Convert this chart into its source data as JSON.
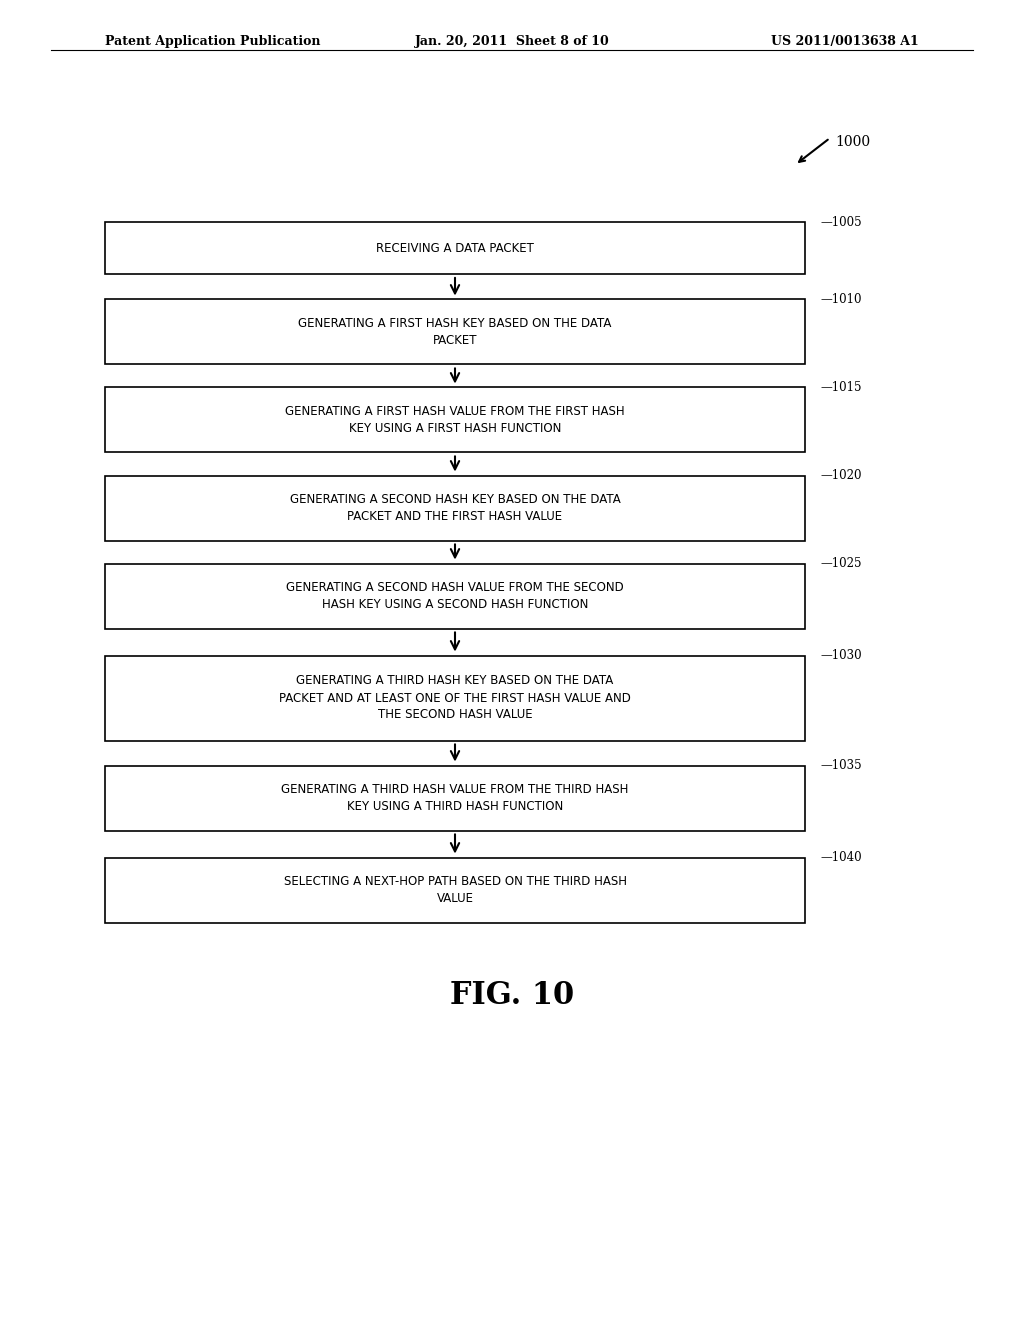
{
  "header_left": "Patent Application Publication",
  "header_center": "Jan. 20, 2011  Sheet 8 of 10",
  "header_right": "US 2011/0013638 A1",
  "figure_label": "1000",
  "fig_caption": "FIG. 10",
  "boxes": [
    {
      "id": "1005",
      "label": "RECEIVING A DATA PACKET",
      "lines": [
        "RECEIVING A DATA PACKET"
      ]
    },
    {
      "id": "1010",
      "label": "GENERATING A FIRST HASH KEY BASED ON THE DATA\nPACKET",
      "lines": [
        "GENERATING A FIRST HASH KEY BASED ON THE DATA",
        "PACKET"
      ]
    },
    {
      "id": "1015",
      "label": "GENERATING A FIRST HASH VALUE FROM THE FIRST HASH\nKEY USING A FIRST HASH FUNCTION",
      "lines": [
        "GENERATING A FIRST HASH VALUE FROM THE FIRST HASH",
        "KEY USING A FIRST HASH FUNCTION"
      ]
    },
    {
      "id": "1020",
      "label": "GENERATING A SECOND HASH KEY BASED ON THE DATA\nPACKET AND THE FIRST HASH VALUE",
      "lines": [
        "GENERATING A SECOND HASH KEY BASED ON THE DATA",
        "PACKET AND THE FIRST HASH VALUE"
      ]
    },
    {
      "id": "1025",
      "label": "GENERATING A SECOND HASH VALUE FROM THE SECOND\nHASH KEY USING A SECOND HASH FUNCTION",
      "lines": [
        "GENERATING A SECOND HASH VALUE FROM THE SECOND",
        "HASH KEY USING A SECOND HASH FUNCTION"
      ]
    },
    {
      "id": "1030",
      "label": "GENERATING A THIRD HASH KEY BASED ON THE DATA\nPACKET AND AT LEAST ONE OF THE FIRST HASH VALUE AND\nTHE SECOND HASH VALUE",
      "lines": [
        "GENERATING A THIRD HASH KEY BASED ON THE DATA",
        "PACKET AND AT LEAST ONE OF THE FIRST HASH VALUE AND",
        "THE SECOND HASH VALUE"
      ]
    },
    {
      "id": "1035",
      "label": "GENERATING A THIRD HASH VALUE FROM THE THIRD HASH\nKEY USING A THIRD HASH FUNCTION",
      "lines": [
        "GENERATING A THIRD HASH VALUE FROM THE THIRD HASH",
        "KEY USING A THIRD HASH FUNCTION"
      ]
    },
    {
      "id": "1040",
      "label": "SELECTING A NEXT-HOP PATH BASED ON THE THIRD HASH\nVALUE",
      "lines": [
        "SELECTING A NEXT-HOP PATH BASED ON THE THIRD HASH",
        "VALUE"
      ]
    }
  ],
  "box_color": "#ffffff",
  "box_edge_color": "#000000",
  "arrow_color": "#000000",
  "text_color": "#000000",
  "bg_color": "#ffffff"
}
